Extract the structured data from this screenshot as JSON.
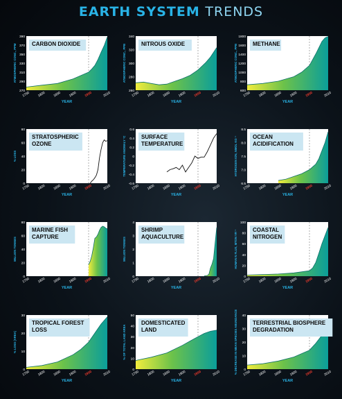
{
  "page": {
    "title_bold": "EARTH SYSTEM",
    "title_thin": "TRENDS"
  },
  "colors": {
    "title_blue": "#29b3e6",
    "label_box": "#cbe6f2",
    "gradient_start": "#f2ec3d",
    "gradient_mid": "#6cc24a",
    "gradient_end": "#0b9e9a",
    "marker_1950": "#e8392c",
    "axis_text": "#ffffff",
    "axis_title": "#29b3e6"
  },
  "chart_data": [
    {
      "type": "area",
      "title": "CARBON DIOXIDE",
      "xlabel": "YEAR",
      "ylabel": "ATMOSPHERIC CONC., PPM",
      "xlim": [
        1750,
        2010
      ],
      "ylim": [
        270,
        390
      ],
      "x_ticks": [
        "1750",
        "1800",
        "1850",
        "1900",
        "1950",
        "2010"
      ],
      "y_ticks": [
        "270",
        "290",
        "310",
        "330",
        "350",
        "370",
        "390"
      ],
      "marker_year": 1950,
      "x": [
        1750,
        1800,
        1850,
        1900,
        1950,
        1960,
        1970,
        1980,
        1990,
        2000,
        2010
      ],
      "y": [
        277,
        281,
        285,
        295,
        310,
        317,
        325,
        338,
        354,
        369,
        388
      ]
    },
    {
      "type": "area",
      "title": "NITROUS OXIDE",
      "xlabel": "YEAR",
      "ylabel": "ATMOSPHERIC CONC., PPB",
      "xlim": [
        1750,
        2010
      ],
      "ylim": [
        260,
        340
      ],
      "x_ticks": [
        "1750",
        "1800",
        "1850",
        "1900",
        "1950",
        "2010"
      ],
      "y_ticks": [
        "260",
        "280",
        "300",
        "320",
        "340"
      ],
      "marker_year": 1950,
      "x": [
        1750,
        1775,
        1800,
        1825,
        1850,
        1875,
        1900,
        1925,
        1950,
        1975,
        1990,
        2010
      ],
      "y": [
        271,
        272,
        270,
        268,
        269,
        273,
        277,
        282,
        290,
        301,
        309,
        323
      ]
    },
    {
      "type": "area",
      "title": "METHANE",
      "xlabel": "YEAR",
      "ylabel": "ATMOSPHERIC CONC., PPB",
      "xlim": [
        1750,
        2010
      ],
      "ylim": [
        600,
        1800
      ],
      "x_ticks": [
        "1750",
        "1800",
        "1850",
        "1900",
        "1950",
        "2010"
      ],
      "y_ticks": [
        "600",
        "800",
        "1000",
        "1200",
        "1400",
        "1600",
        "1800"
      ],
      "marker_year": 1950,
      "x": [
        1750,
        1800,
        1850,
        1900,
        1925,
        1950,
        1970,
        1990,
        2000,
        2010
      ],
      "y": [
        720,
        750,
        800,
        900,
        1000,
        1150,
        1400,
        1680,
        1760,
        1790
      ]
    },
    {
      "type": "line",
      "title": "STRATOSPHERIC OZONE",
      "xlabel": "YEAR",
      "ylabel": "% LOSS",
      "xlim": [
        1750,
        2010
      ],
      "ylim": [
        0,
        80
      ],
      "x_ticks": [
        "1750",
        "1800",
        "1850",
        "1900",
        "1950",
        "2010"
      ],
      "y_ticks": [
        "0",
        "20",
        "40",
        "60",
        "80"
      ],
      "marker_year": 1950,
      "x": [
        1955,
        1960,
        1965,
        1970,
        1975,
        1980,
        1985,
        1990,
        1995,
        2000,
        2005,
        2010
      ],
      "y": [
        0,
        3,
        5,
        8,
        12,
        20,
        38,
        50,
        60,
        64,
        62,
        63
      ]
    },
    {
      "type": "line",
      "title": "SURFACE TEMPERATURE",
      "xlabel": "YEAR",
      "ylabel": "TEMPERATURE ANOMALY °C",
      "xlim": [
        1750,
        2010
      ],
      "ylim": [
        -0.6,
        0.6
      ],
      "x_ticks": [
        "1750",
        "1800",
        "1850",
        "1900",
        "1950",
        "2010"
      ],
      "y_ticks": [
        "-0.6",
        "-0.4",
        "-0.2",
        "0",
        "0.2",
        "0.4",
        "0.6"
      ],
      "marker_year": 1950,
      "x": [
        1850,
        1860,
        1870,
        1880,
        1890,
        1900,
        1910,
        1920,
        1930,
        1940,
        1950,
        1960,
        1970,
        1980,
        1990,
        2000,
        2010
      ],
      "y": [
        -0.35,
        -0.3,
        -0.28,
        -0.25,
        -0.3,
        -0.2,
        -0.35,
        -0.25,
        -0.15,
        0.0,
        -0.05,
        -0.02,
        -0.02,
        0.1,
        0.25,
        0.4,
        0.5
      ]
    },
    {
      "type": "area",
      "title": "OCEAN ACIDIFICATION",
      "xlabel": "YEAR",
      "ylabel": "HYDROGEN ION, NMOL KG⁻¹",
      "xlim": [
        1750,
        2010
      ],
      "ylim": [
        6.5,
        8.5
      ],
      "x_ticks": [
        "1750",
        "1800",
        "1850",
        "1900",
        "1950",
        "2010"
      ],
      "y_ticks": [
        "6.5",
        "7.0",
        "7.5",
        "8.0",
        "8.5"
      ],
      "marker_year": 1950,
      "x": [
        1850,
        1875,
        1900,
        1925,
        1950,
        1960,
        1970,
        1980,
        1990,
        2000,
        2010
      ],
      "y": [
        6.6,
        6.65,
        6.75,
        6.85,
        7.0,
        7.1,
        7.2,
        7.4,
        7.7,
        8.0,
        8.4
      ]
    },
    {
      "type": "area",
      "title": "MARINE FISH CAPTURE",
      "xlabel": "YEAR",
      "ylabel": "MILLION TONNES",
      "xlim": [
        1750,
        2010
      ],
      "ylim": [
        0,
        80
      ],
      "x_ticks": [
        "1750",
        "1800",
        "1850",
        "1900",
        "1950",
        "2010"
      ],
      "y_ticks": [
        "0",
        "20",
        "40",
        "60",
        "80"
      ],
      "marker_year": 1950,
      "x": [
        1950,
        1955,
        1960,
        1965,
        1970,
        1975,
        1980,
        1985,
        1990,
        1995,
        2000,
        2005,
        2010
      ],
      "y": [
        17,
        22,
        30,
        42,
        56,
        58,
        62,
        68,
        72,
        74,
        73,
        71,
        70
      ]
    },
    {
      "type": "area",
      "title": "SHRIMP AQUACULTURE",
      "xlabel": "YEAR",
      "ylabel": "MILLION TONNES",
      "xlim": [
        1750,
        2010
      ],
      "ylim": [
        0,
        4
      ],
      "x_ticks": [
        "1750",
        "1800",
        "1850",
        "1900",
        "1950",
        "2010"
      ],
      "y_ticks": [
        "0",
        "1",
        "2",
        "3",
        "4"
      ],
      "marker_year": 1950,
      "x": [
        1970,
        1980,
        1985,
        1990,
        1995,
        2000,
        2005,
        2010
      ],
      "y": [
        0.02,
        0.05,
        0.15,
        0.6,
        0.9,
        1.3,
        2.5,
        3.6
      ]
    },
    {
      "type": "area",
      "title": "COASTAL NITROGEN",
      "xlabel": "YEAR",
      "ylabel": "HUMAN N FLUX, MTON YR⁻¹",
      "xlim": [
        1750,
        2010
      ],
      "ylim": [
        0,
        100
      ],
      "x_ticks": [
        "1750",
        "1800",
        "1850",
        "1900",
        "1950",
        "2010"
      ],
      "y_ticks": [
        "0",
        "20",
        "40",
        "60",
        "80",
        "100"
      ],
      "marker_year": 1950,
      "x": [
        1750,
        1800,
        1850,
        1900,
        1950,
        1960,
        1970,
        1980,
        1990,
        2000,
        2010
      ],
      "y": [
        2,
        3,
        4,
        6,
        10,
        15,
        25,
        42,
        60,
        75,
        90
      ]
    },
    {
      "type": "area",
      "title": "TROPICAL FOREST LOSS",
      "xlabel": "YEAR",
      "ylabel": "% LOSS (AREA)",
      "xlim": [
        1750,
        2010
      ],
      "ylim": [
        0,
        30
      ],
      "x_ticks": [
        "1750",
        "1800",
        "1850",
        "1900",
        "1950",
        "2010"
      ],
      "y_ticks": [
        "0",
        "10",
        "20",
        "30"
      ],
      "marker_year": 1950,
      "x": [
        1750,
        1800,
        1850,
        1900,
        1925,
        1950,
        1970,
        1990,
        2010
      ],
      "y": [
        1,
        2,
        4,
        8,
        11,
        15,
        20,
        25,
        29
      ]
    },
    {
      "type": "area",
      "title": "DOMESTICATED LAND",
      "xlabel": "YEAR",
      "ylabel": "% OF TOTAL LAND AREA",
      "xlim": [
        1750,
        2010
      ],
      "ylim": [
        0,
        50
      ],
      "x_ticks": [
        "1750",
        "1800",
        "1850",
        "1900",
        "1950",
        "2010"
      ],
      "y_ticks": [
        "0",
        "10",
        "20",
        "30",
        "40",
        "50"
      ],
      "marker_year": 1950,
      "x": [
        1750,
        1800,
        1850,
        1900,
        1925,
        1950,
        1970,
        1990,
        2010
      ],
      "y": [
        8,
        11,
        15,
        22,
        26,
        30,
        33,
        35,
        36
      ]
    },
    {
      "type": "area",
      "title": "TERRESTRIAL BIOSPHERE DEGRADATION",
      "xlabel": "YEAR",
      "ylabel": "% DECREASE IN MEAN SPECIES ABUNDANCE",
      "xlim": [
        1750,
        2010
      ],
      "ylim": [
        0,
        40
      ],
      "x_ticks": [
        "1750",
        "1800",
        "1850",
        "1900",
        "1950",
        "2010"
      ],
      "y_ticks": [
        "0",
        "10",
        "20",
        "30",
        "40"
      ],
      "marker_year": 1950,
      "x": [
        1750,
        1800,
        1850,
        1900,
        1950,
        1970,
        1990,
        2010
      ],
      "y": [
        3,
        4,
        6,
        9,
        14,
        19,
        25,
        33
      ]
    }
  ]
}
